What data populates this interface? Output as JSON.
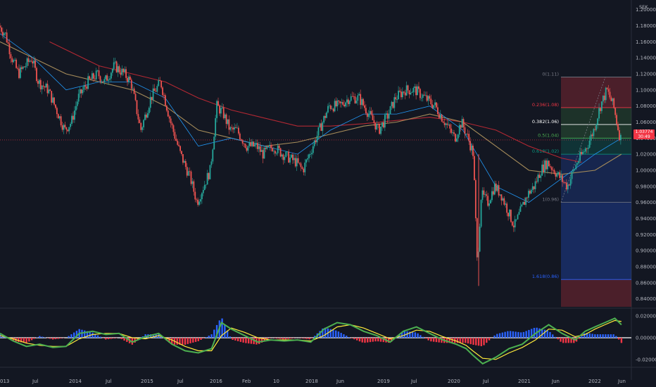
{
  "chart_data": {
    "type": "candlestick",
    "currency_label": "SEK",
    "last_price": "1.03774",
    "last_price_sub": "30:49",
    "x_labels": [
      "013",
      "Jul",
      "2014",
      "Jul",
      "2015",
      "Jul",
      "2016",
      "Feb",
      "10",
      "2018",
      "Jun",
      "2019",
      "Jul",
      "2020",
      "Jul",
      "2021",
      "Jun",
      "2022",
      "Jun"
    ],
    "price_axis": [
      "1.20000",
      "1.18000",
      "1.16000",
      "1.14000",
      "1.12000",
      "1.10000",
      "1.08000",
      "1.06000",
      "1.04000",
      "1.02000",
      "1.00000",
      "0.98000",
      "0.96000",
      "0.94000",
      "0.92000",
      "0.90000",
      "0.88000",
      "0.86000",
      "0.84000"
    ],
    "price_range": [
      0.83,
      1.205
    ],
    "osc_axis": [
      "0.02000",
      "0.00000",
      "-0.02000"
    ],
    "osc_range": [
      -0.026,
      0.026
    ],
    "fib_levels": [
      {
        "label": "0(1.11)",
        "value": 1.116,
        "color": "#787b86"
      },
      {
        "label": "0.236(1.08)",
        "value": 1.078,
        "color": "#f23645"
      },
      {
        "label": "0.382(1.06)",
        "value": 1.057,
        "color": "#ffffff"
      },
      {
        "label": "0.5(1.04)",
        "value": 1.04,
        "color": "#4caf50"
      },
      {
        "label": "0.618(1.02)",
        "value": 1.02,
        "color": "#089981"
      },
      {
        "label": "1(0.96)",
        "value": 0.96,
        "color": "#787b86"
      },
      {
        "label": "1.618(0.86)",
        "value": 0.864,
        "color": "#2962ff"
      }
    ],
    "price_path": [
      [
        2013.0,
        1.18
      ],
      [
        2013.1,
        1.17
      ],
      [
        2013.2,
        1.14
      ],
      [
        2013.3,
        1.12
      ],
      [
        2013.4,
        1.13
      ],
      [
        2013.5,
        1.14
      ],
      [
        2013.6,
        1.11
      ],
      [
        2013.75,
        1.1
      ],
      [
        2013.9,
        1.07
      ],
      [
        2014.0,
        1.05
      ],
      [
        2014.1,
        1.06
      ],
      [
        2014.2,
        1.09
      ],
      [
        2014.35,
        1.11
      ],
      [
        2014.5,
        1.12
      ],
      [
        2014.6,
        1.11
      ],
      [
        2014.75,
        1.13
      ],
      [
        2014.9,
        1.12
      ],
      [
        2015.0,
        1.11
      ],
      [
        2015.1,
        1.07
      ],
      [
        2015.15,
        1.05
      ],
      [
        2015.3,
        1.09
      ],
      [
        2015.45,
        1.11
      ],
      [
        2015.6,
        1.06
      ],
      [
        2015.75,
        1.02
      ],
      [
        2015.9,
        0.99
      ],
      [
        2016.0,
        0.96
      ],
      [
        2016.1,
        0.98
      ],
      [
        2016.2,
        1.0
      ],
      [
        2016.3,
        1.08
      ],
      [
        2016.4,
        1.07
      ],
      [
        2016.5,
        1.05
      ],
      [
        2016.6,
        1.05
      ],
      [
        2016.75,
        1.03
      ],
      [
        2016.9,
        1.03
      ],
      [
        2017.0,
        1.02
      ],
      [
        2017.15,
        1.03
      ],
      [
        2017.3,
        1.02
      ],
      [
        2017.5,
        1.01
      ],
      [
        2017.6,
        1.0
      ],
      [
        2017.75,
        1.03
      ],
      [
        2017.9,
        1.06
      ],
      [
        2018.0,
        1.08
      ],
      [
        2018.15,
        1.08
      ],
      [
        2018.3,
        1.09
      ],
      [
        2018.45,
        1.09
      ],
      [
        2018.6,
        1.07
      ],
      [
        2018.75,
        1.05
      ],
      [
        2018.9,
        1.07
      ],
      [
        2019.0,
        1.09
      ],
      [
        2019.15,
        1.1
      ],
      [
        2019.3,
        1.1
      ],
      [
        2019.45,
        1.09
      ],
      [
        2019.6,
        1.08
      ],
      [
        2019.75,
        1.06
      ],
      [
        2019.9,
        1.04
      ],
      [
        2020.0,
        1.06
      ],
      [
        2020.1,
        1.04
      ],
      [
        2020.18,
        1.02
      ],
      [
        2020.24,
        0.88
      ],
      [
        2020.3,
        0.97
      ],
      [
        2020.4,
        0.96
      ],
      [
        2020.5,
        0.98
      ],
      [
        2020.6,
        0.97
      ],
      [
        2020.7,
        0.95
      ],
      [
        2020.8,
        0.93
      ],
      [
        2020.9,
        0.95
      ],
      [
        2021.0,
        0.97
      ],
      [
        2021.1,
        0.98
      ],
      [
        2021.2,
        1.0
      ],
      [
        2021.3,
        1.01
      ],
      [
        2021.4,
        1.0
      ],
      [
        2021.5,
        0.99
      ],
      [
        2021.6,
        0.98
      ],
      [
        2021.75,
        1.01
      ],
      [
        2021.9,
        1.03
      ],
      [
        2022.0,
        1.05
      ],
      [
        2022.1,
        1.08
      ],
      [
        2022.2,
        1.1
      ],
      [
        2022.3,
        1.08
      ],
      [
        2022.4,
        1.04
      ]
    ],
    "ma_short": [
      [
        2013.0,
        1.17
      ],
      [
        2013.5,
        1.14
      ],
      [
        2014.0,
        1.1
      ],
      [
        2014.5,
        1.11
      ],
      [
        2015.0,
        1.11
      ],
      [
        2015.5,
        1.09
      ],
      [
        2016.0,
        1.03
      ],
      [
        2016.5,
        1.04
      ],
      [
        2017.0,
        1.03
      ],
      [
        2017.5,
        1.02
      ],
      [
        2018.0,
        1.05
      ],
      [
        2018.5,
        1.07
      ],
      [
        2019.0,
        1.07
      ],
      [
        2019.5,
        1.08
      ],
      [
        2020.0,
        1.05
      ],
      [
        2020.5,
        0.98
      ],
      [
        2021.0,
        0.96
      ],
      [
        2021.5,
        0.99
      ],
      [
        2022.0,
        1.02
      ],
      [
        2022.4,
        1.04
      ]
    ],
    "ma_long": [
      [
        2013.0,
        1.16
      ],
      [
        2013.5,
        1.14
      ],
      [
        2014.0,
        1.12
      ],
      [
        2014.5,
        1.11
      ],
      [
        2015.0,
        1.1
      ],
      [
        2015.5,
        1.08
      ],
      [
        2016.0,
        1.05
      ],
      [
        2016.5,
        1.04
      ],
      [
        2017.0,
        1.03
      ],
      [
        2017.5,
        1.035
      ],
      [
        2018.0,
        1.045
      ],
      [
        2018.5,
        1.055
      ],
      [
        2019.0,
        1.06
      ],
      [
        2019.5,
        1.07
      ],
      [
        2020.0,
        1.06
      ],
      [
        2020.5,
        1.03
      ],
      [
        2021.0,
        1.0
      ],
      [
        2021.5,
        0.995
      ],
      [
        2022.0,
        1.0
      ],
      [
        2022.4,
        1.02
      ]
    ],
    "ma_200": [
      [
        2013.75,
        1.16
      ],
      [
        2014.5,
        1.13
      ],
      [
        2015.0,
        1.12
      ],
      [
        2015.5,
        1.11
      ],
      [
        2016.0,
        1.09
      ],
      [
        2016.5,
        1.075
      ],
      [
        2017.0,
        1.065
      ],
      [
        2017.5,
        1.055
      ],
      [
        2018.0,
        1.055
      ],
      [
        2018.5,
        1.058
      ],
      [
        2019.0,
        1.062
      ],
      [
        2019.5,
        1.066
      ],
      [
        2020.0,
        1.06
      ],
      [
        2020.5,
        1.05
      ],
      [
        2021.0,
        1.03
      ],
      [
        2021.5,
        1.015
      ],
      [
        2021.8,
        1.01
      ]
    ],
    "macd": [
      [
        2013.0,
        0.004
      ],
      [
        2013.2,
        -0.003
      ],
      [
        2013.4,
        -0.008
      ],
      [
        2013.6,
        -0.006
      ],
      [
        2013.8,
        -0.009
      ],
      [
        2014.0,
        -0.008
      ],
      [
        2014.2,
        0.004
      ],
      [
        2014.4,
        0.006
      ],
      [
        2014.6,
        0.003
      ],
      [
        2014.8,
        0.004
      ],
      [
        2015.0,
        -0.004
      ],
      [
        2015.2,
        0.001
      ],
      [
        2015.4,
        0.004
      ],
      [
        2015.6,
        -0.006
      ],
      [
        2015.8,
        -0.012
      ],
      [
        2016.0,
        -0.014
      ],
      [
        2016.2,
        -0.01
      ],
      [
        2016.35,
        0.014
      ],
      [
        2016.5,
        0.008
      ],
      [
        2016.7,
        0.002
      ],
      [
        2016.9,
        -0.004
      ],
      [
        2017.1,
        -0.002
      ],
      [
        2017.3,
        -0.003
      ],
      [
        2017.5,
        -0.002
      ],
      [
        2017.7,
        -0.004
      ],
      [
        2017.9,
        0.008
      ],
      [
        2018.1,
        0.014
      ],
      [
        2018.3,
        0.012
      ],
      [
        2018.5,
        0.006
      ],
      [
        2018.7,
        0.002
      ],
      [
        2018.9,
        -0.004
      ],
      [
        2019.1,
        0.006
      ],
      [
        2019.3,
        0.01
      ],
      [
        2019.5,
        0.004
      ],
      [
        2019.7,
        -0.002
      ],
      [
        2019.9,
        -0.006
      ],
      [
        2020.05,
        -0.01
      ],
      [
        2020.15,
        -0.016
      ],
      [
        2020.3,
        -0.024
      ],
      [
        2020.5,
        -0.018
      ],
      [
        2020.7,
        -0.01
      ],
      [
        2020.9,
        -0.006
      ],
      [
        2021.1,
        0.004
      ],
      [
        2021.3,
        0.012
      ],
      [
        2021.5,
        0.004
      ],
      [
        2021.7,
        -0.002
      ],
      [
        2021.85,
        0.006
      ],
      [
        2022.0,
        0.01
      ],
      [
        2022.15,
        0.014
      ],
      [
        2022.3,
        0.018
      ],
      [
        2022.4,
        0.012
      ]
    ],
    "macd_signal": [
      [
        2013.0,
        0.002
      ],
      [
        2013.2,
        -0.001
      ],
      [
        2013.4,
        -0.005
      ],
      [
        2013.6,
        -0.007
      ],
      [
        2013.8,
        -0.008
      ],
      [
        2014.0,
        -0.008
      ],
      [
        2014.2,
        -0.001
      ],
      [
        2014.4,
        0.003
      ],
      [
        2014.6,
        0.004
      ],
      [
        2014.8,
        0.004
      ],
      [
        2015.0,
        0.0
      ],
      [
        2015.2,
        -0.001
      ],
      [
        2015.4,
        0.002
      ],
      [
        2015.6,
        -0.002
      ],
      [
        2015.8,
        -0.008
      ],
      [
        2016.0,
        -0.012
      ],
      [
        2016.2,
        -0.012
      ],
      [
        2016.35,
        0.002
      ],
      [
        2016.5,
        0.009
      ],
      [
        2016.7,
        0.005
      ],
      [
        2016.9,
        0.0
      ],
      [
        2017.1,
        -0.002
      ],
      [
        2017.3,
        -0.002
      ],
      [
        2017.5,
        -0.002
      ],
      [
        2017.7,
        -0.003
      ],
      [
        2017.9,
        0.002
      ],
      [
        2018.1,
        0.01
      ],
      [
        2018.3,
        0.012
      ],
      [
        2018.5,
        0.009
      ],
      [
        2018.7,
        0.004
      ],
      [
        2018.9,
        -0.001
      ],
      [
        2019.1,
        0.002
      ],
      [
        2019.3,
        0.007
      ],
      [
        2019.5,
        0.006
      ],
      [
        2019.7,
        0.001
      ],
      [
        2019.9,
        -0.003
      ],
      [
        2020.05,
        -0.007
      ],
      [
        2020.15,
        -0.012
      ],
      [
        2020.3,
        -0.019
      ],
      [
        2020.5,
        -0.02
      ],
      [
        2020.7,
        -0.014
      ],
      [
        2020.9,
        -0.009
      ],
      [
        2021.1,
        -0.002
      ],
      [
        2021.3,
        0.008
      ],
      [
        2021.5,
        0.007
      ],
      [
        2021.7,
        0.001
      ],
      [
        2021.85,
        0.003
      ],
      [
        2022.0,
        0.008
      ],
      [
        2022.15,
        0.012
      ],
      [
        2022.3,
        0.016
      ],
      [
        2022.4,
        0.015
      ]
    ]
  }
}
